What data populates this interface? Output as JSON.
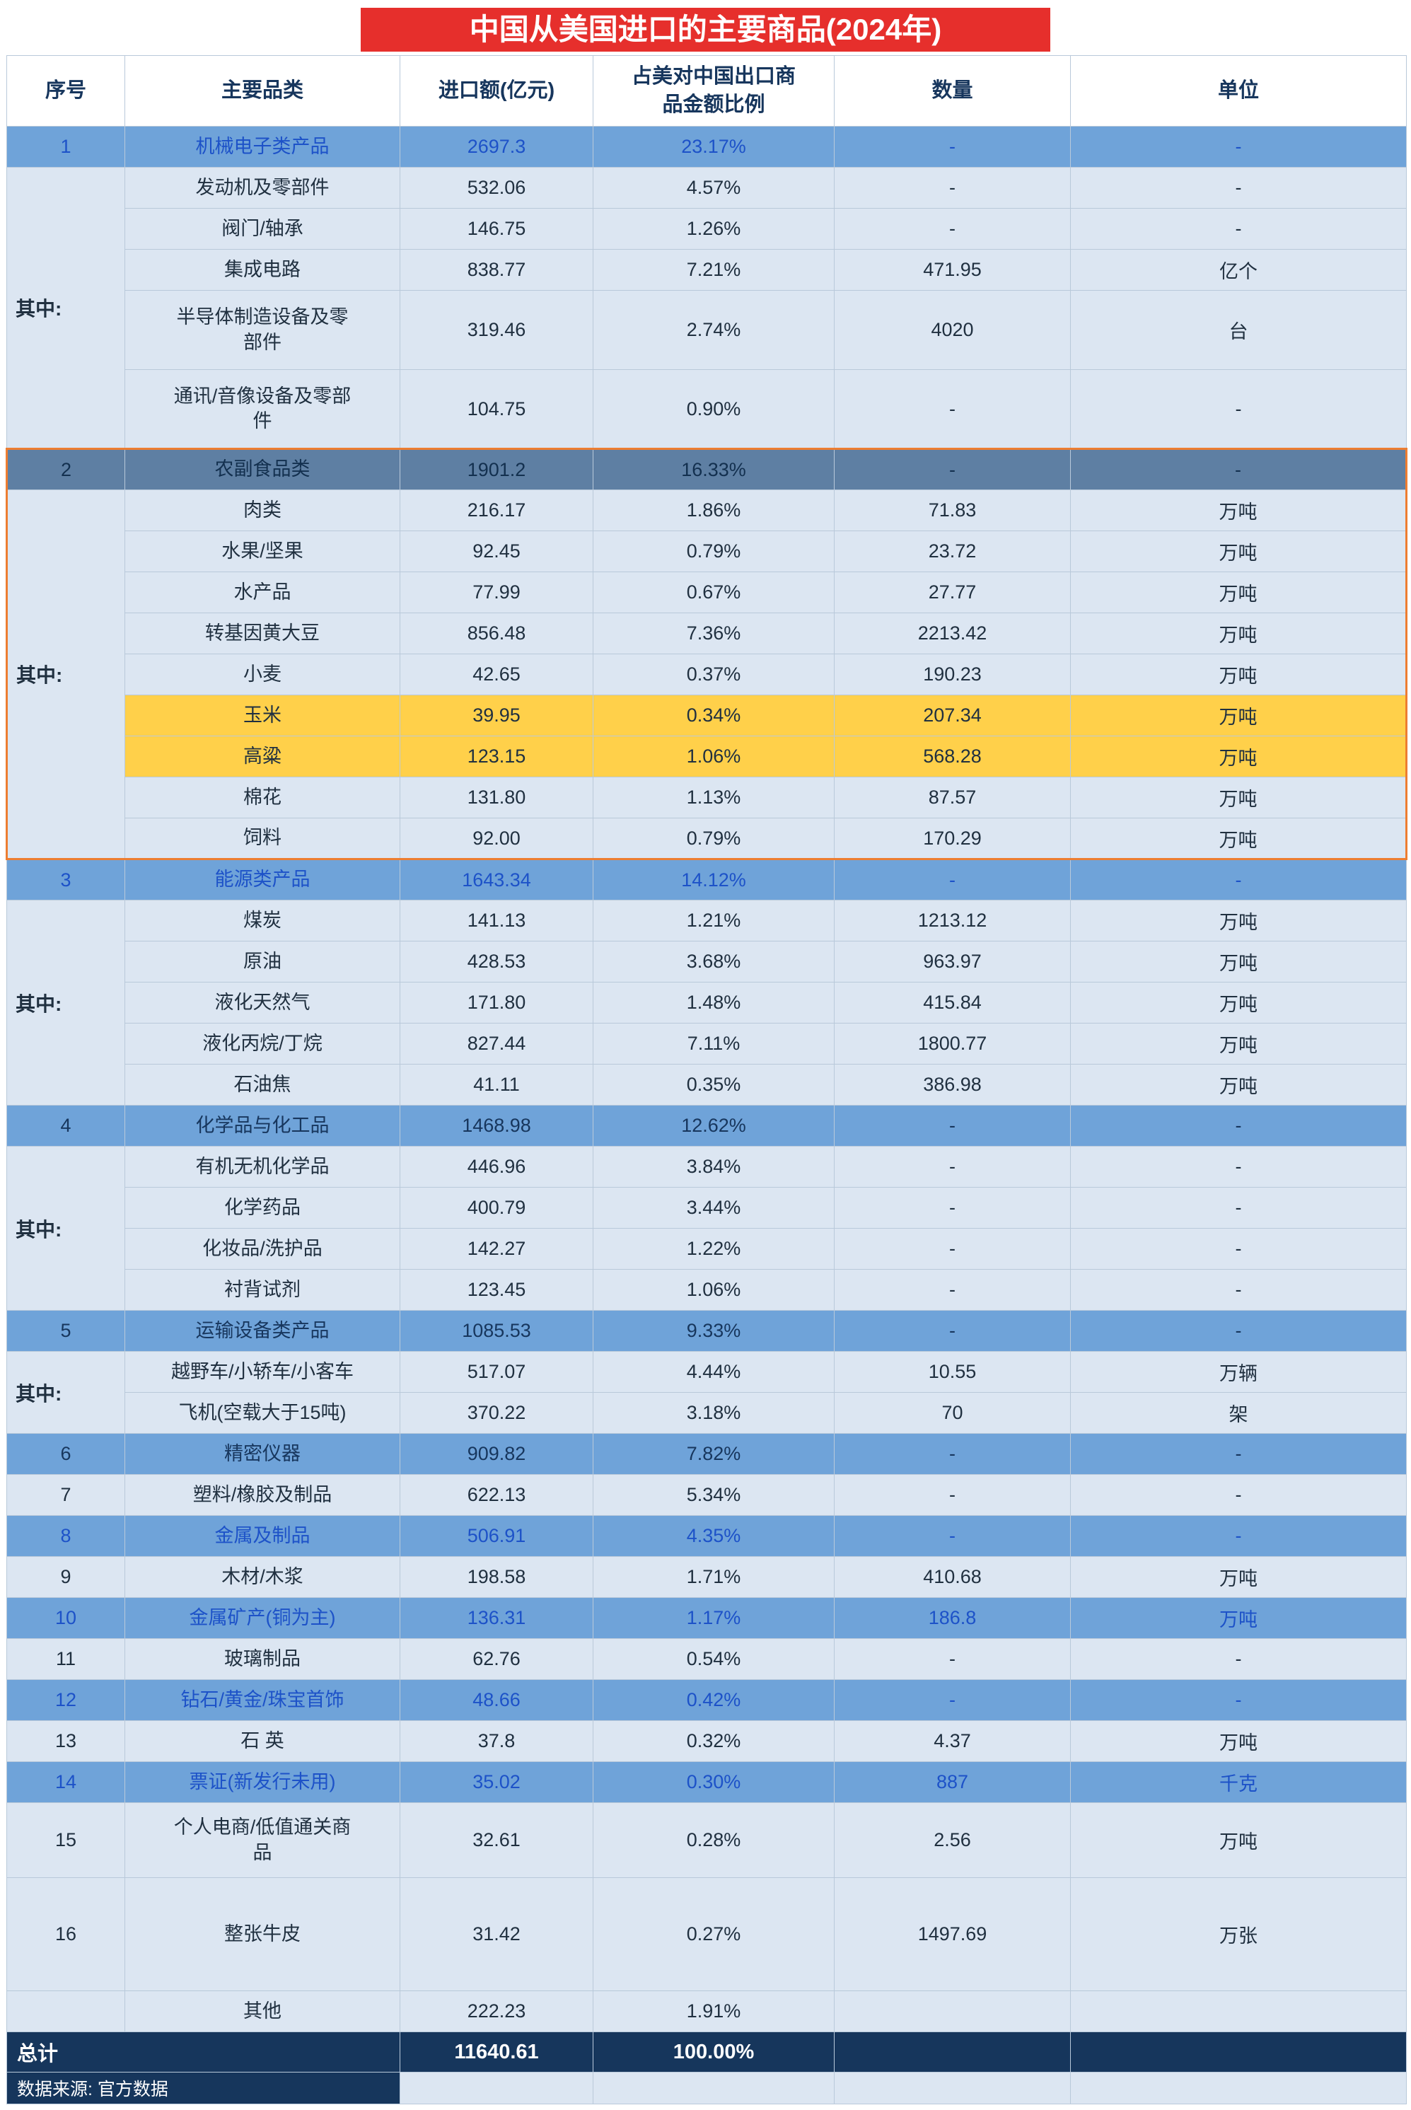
{
  "title": "中国从美国进口的主要商品(2024年)",
  "source_note": "数据来源: 官方数据",
  "colors": {
    "title_red": "#e62f2c",
    "category_blue": "#6fa3d9",
    "category_dark_blue": "#5e7fa3",
    "sub_row_light_blue": "#dce6f2",
    "highlight_yellow": "#ffd04a",
    "total_navy": "#16365c",
    "orange_outline": "#ed7d31",
    "blue_text": "#1d52c8",
    "navy_text": "#17365d"
  },
  "header": [
    "序号",
    "主要品类",
    "进口额(亿元)",
    "占美对中国出口商\n品金额比例",
    "数量",
    "单位"
  ],
  "rows": [
    {
      "sn": "1",
      "snSpan": 1,
      "cls": "cat bluetext",
      "name": "机械电子类产品",
      "value": "2697.3",
      "share": "23.17%",
      "qty": "-",
      "unit": "-"
    },
    {
      "sn": "其中:",
      "snSpan": 5,
      "snCls": "qz",
      "cls": "sub",
      "name": "发动机及零部件",
      "value": "532.06",
      "share": "4.57%",
      "qty": "-",
      "unit": "-"
    },
    {
      "cls": "sub",
      "name": "阀门/轴承",
      "value": "146.75",
      "share": "1.26%",
      "qty": "-",
      "unit": "-"
    },
    {
      "cls": "sub",
      "name": "集成电路",
      "value": "838.77",
      "share": "7.21%",
      "qty": "471.95",
      "unit": "亿个"
    },
    {
      "cls": "sub",
      "h": 112,
      "name": "半导体制造设备及零\n部件",
      "value": "319.46",
      "share": "2.74%",
      "qty": "4020",
      "unit": "台"
    },
    {
      "cls": "sub",
      "h": 112,
      "name": "通讯/音像设备及零部\n件",
      "value": "104.75",
      "share": "0.90%",
      "qty": "-",
      "unit": "-"
    },
    {
      "sn": "2",
      "snSpan": 1,
      "snCls": "oleft",
      "cls": "catdark osec osec-top",
      "name": "农副食品类",
      "value": "1901.2",
      "share": "16.33%",
      "qty": "-",
      "unit": "-"
    },
    {
      "sn": "其中:",
      "snSpan": 9,
      "snCls": "qz oleft obot",
      "cls": "sub osec",
      "name": "肉类",
      "value": "216.17",
      "share": "1.86%",
      "qty": "71.83",
      "unit": "万吨"
    },
    {
      "cls": "sub osec",
      "name": "水果/坚果",
      "value": "92.45",
      "share": "0.79%",
      "qty": "23.72",
      "unit": "万吨"
    },
    {
      "cls": "sub osec",
      "name": "水产品",
      "value": "77.99",
      "share": "0.67%",
      "qty": "27.77",
      "unit": "万吨"
    },
    {
      "cls": "sub osec",
      "name": "转基因黄大豆",
      "value": "856.48",
      "share": "7.36%",
      "qty": "2213.42",
      "unit": "万吨"
    },
    {
      "cls": "sub osec",
      "name": "小麦",
      "value": "42.65",
      "share": "0.37%",
      "qty": "190.23",
      "unit": "万吨"
    },
    {
      "cls": "sub yellow osec",
      "name": "玉米",
      "value": "39.95",
      "share": "0.34%",
      "qty": "207.34",
      "unit": "万吨"
    },
    {
      "cls": "sub yellow osec",
      "name": "高粱",
      "value": "123.15",
      "share": "1.06%",
      "qty": "568.28",
      "unit": "万吨"
    },
    {
      "cls": "sub osec",
      "name": "棉花",
      "value": "131.80",
      "share": "1.13%",
      "qty": "87.57",
      "unit": "万吨"
    },
    {
      "cls": "sub osec osec-bot",
      "name": "饲料",
      "value": "92.00",
      "share": "0.79%",
      "qty": "170.29",
      "unit": "万吨"
    },
    {
      "sn": "3",
      "snSpan": 1,
      "cls": "cat bluetext",
      "name": "能源类产品",
      "value": "1643.34",
      "share": "14.12%",
      "qty": "-",
      "unit": "-"
    },
    {
      "sn": "其中:",
      "snSpan": 5,
      "snCls": "qz",
      "cls": "sub",
      "name": "煤炭",
      "value": "141.13",
      "share": "1.21%",
      "qty": "1213.12",
      "unit": "万吨"
    },
    {
      "cls": "sub",
      "name": "原油",
      "value": "428.53",
      "share": "3.68%",
      "qty": "963.97",
      "unit": "万吨"
    },
    {
      "cls": "sub",
      "name": "液化天然气",
      "value": "171.80",
      "share": "1.48%",
      "qty": "415.84",
      "unit": "万吨"
    },
    {
      "cls": "sub",
      "name": "液化丙烷/丁烷",
      "value": "827.44",
      "share": "7.11%",
      "qty": "1800.77",
      "unit": "万吨"
    },
    {
      "cls": "sub",
      "name": "石油焦",
      "value": "41.11",
      "share": "0.35%",
      "qty": "386.98",
      "unit": "万吨"
    },
    {
      "sn": "4",
      "snSpan": 1,
      "cls": "cat",
      "name": "化学品与化工品",
      "value": "1468.98",
      "share": "12.62%",
      "qty": "-",
      "unit": "-"
    },
    {
      "sn": "其中:",
      "snSpan": 4,
      "snCls": "qz",
      "cls": "sub",
      "name": "有机无机化学品",
      "value": "446.96",
      "share": "3.84%",
      "qty": "-",
      "unit": "-"
    },
    {
      "cls": "sub",
      "name": "化学药品",
      "value": "400.79",
      "share": "3.44%",
      "qty": "-",
      "unit": "-"
    },
    {
      "cls": "sub",
      "name": "化妆品/洗护品",
      "value": "142.27",
      "share": "1.22%",
      "qty": "-",
      "unit": "-"
    },
    {
      "cls": "sub",
      "name": "衬背试剂",
      "value": "123.45",
      "share": "1.06%",
      "qty": "-",
      "unit": "-"
    },
    {
      "sn": "5",
      "snSpan": 1,
      "cls": "cat",
      "name": "运输设备类产品",
      "value": "1085.53",
      "share": "9.33%",
      "qty": "-",
      "unit": "-"
    },
    {
      "sn": "其中:",
      "snSpan": 2,
      "snCls": "qz",
      "cls": "sub",
      "name": "越野车/小轿车/小客车",
      "value": "517.07",
      "share": "4.44%",
      "qty": "10.55",
      "unit": "万辆"
    },
    {
      "cls": "sub",
      "name": "飞机(空载大于15吨)",
      "value": "370.22",
      "share": "3.18%",
      "qty": "70",
      "unit": "架"
    },
    {
      "sn": "6",
      "cls": "cat",
      "name": "精密仪器",
      "value": "909.82",
      "share": "7.82%",
      "qty": "-",
      "unit": "-"
    },
    {
      "sn": "7",
      "cls": "sub",
      "name": "塑料/橡胶及制品",
      "value": "622.13",
      "share": "5.34%",
      "qty": "-",
      "unit": "-"
    },
    {
      "sn": "8",
      "cls": "cat bluetext",
      "name": "金属及制品",
      "value": "506.91",
      "share": "4.35%",
      "qty": "-",
      "unit": "-"
    },
    {
      "sn": "9",
      "cls": "sub",
      "name": "木材/木浆",
      "value": "198.58",
      "share": "1.71%",
      "qty": "410.68",
      "unit": "万吨"
    },
    {
      "sn": "10",
      "cls": "cat bluetext",
      "name": "金属矿产(铜为主)",
      "value": "136.31",
      "share": "1.17%",
      "qty": "186.8",
      "unit": "万吨"
    },
    {
      "sn": "11",
      "cls": "sub",
      "name": "玻璃制品",
      "value": "62.76",
      "share": "0.54%",
      "qty": "-",
      "unit": "-"
    },
    {
      "sn": "12",
      "cls": "cat bluetext",
      "name": "钻石/黄金/珠宝首饰",
      "value": "48.66",
      "share": "0.42%",
      "qty": "-",
      "unit": "-"
    },
    {
      "sn": "13",
      "cls": "sub",
      "name": "石 英",
      "value": "37.8",
      "share": "0.32%",
      "qty": "4.37",
      "unit": "万吨"
    },
    {
      "sn": "14",
      "cls": "cat bluetext",
      "name": "票证(新发行未用)",
      "value": "35.02",
      "share": "0.30%",
      "qty": "887",
      "unit": "千克"
    },
    {
      "sn": "15",
      "cls": "sub",
      "h": 106,
      "name": "个人电商/低值通关商\n品",
      "value": "32.61",
      "share": "0.28%",
      "qty": "2.56",
      "unit": "万吨"
    },
    {
      "sn": "16",
      "cls": "sub",
      "h": 160,
      "name": "整张牛皮",
      "value": "31.42",
      "share": "0.27%",
      "qty": "1497.69",
      "unit": "万张"
    },
    {
      "sn": "",
      "cls": "sub",
      "name": "其他",
      "value": "222.23",
      "share": "1.91%",
      "qty": "",
      "unit": ""
    }
  ],
  "total": {
    "label": "总计",
    "value": "11640.61",
    "share": "100.00%"
  }
}
